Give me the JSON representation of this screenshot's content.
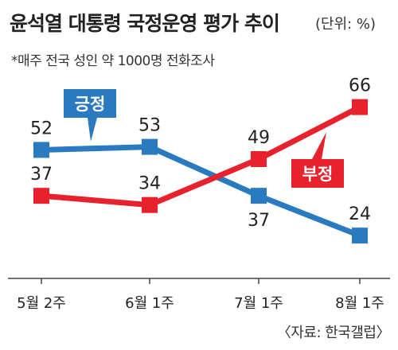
{
  "header": {
    "title": "윤석열 대통령 국정운영 평가 추이",
    "unit": "(단위: %)",
    "note": "*매주 전국 성인 약 1000명 전화조사"
  },
  "footer": {
    "source": "〈자료: 한국갤럽〉"
  },
  "chart_data": {
    "type": "line",
    "title": "윤석열 대통령 국정운영 평가 추이",
    "categories": [
      "5월 2주",
      "6월 1주",
      "7월 1주",
      "8월 1주"
    ],
    "series": [
      {
        "name": "긍정",
        "values": [
          52,
          53,
          37,
          24
        ],
        "color": "#2a7ac0"
      },
      {
        "name": "부정",
        "values": [
          37,
          34,
          49,
          66
        ],
        "color": "#e8222d"
      }
    ],
    "ylim": [
      10,
      75
    ],
    "grid": false,
    "legend": "callout labels on lines"
  }
}
